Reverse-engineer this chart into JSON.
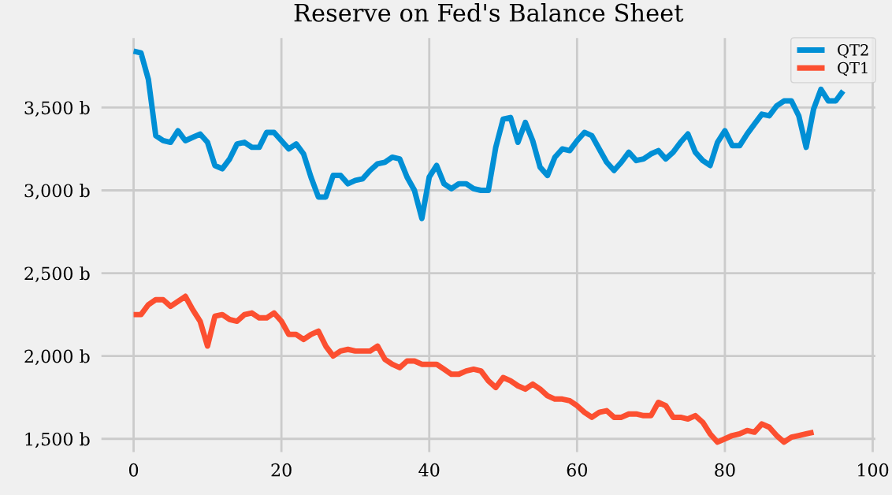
{
  "chart_data": {
    "type": "line",
    "title": "Reserve on Fed's Balance Sheet",
    "xlim": [
      -4.8,
      100.8
    ],
    "xticks": [
      0,
      20,
      40,
      60,
      80,
      100
    ],
    "ylim": [
      1400,
      3940
    ],
    "yticks": [
      {
        "value": 1500,
        "label": "1,500 b"
      },
      {
        "value": 2000,
        "label": "2,000 b"
      },
      {
        "value": 2500,
        "label": "2,500 b"
      },
      {
        "value": 3000,
        "label": "3,000 b"
      },
      {
        "value": 3500,
        "label": "3,500 b"
      }
    ],
    "grid": true,
    "legend": "top right",
    "marker": "none",
    "line_style": "solid",
    "series": [
      {
        "name": "QT2",
        "color": "#008fd5",
        "x": [
          0,
          1,
          2,
          3,
          4,
          5,
          6,
          7,
          8,
          9,
          10,
          11,
          12,
          13,
          14,
          15,
          16,
          17,
          18,
          19,
          20,
          21,
          22,
          23,
          24,
          25,
          26,
          27,
          28,
          29,
          30,
          31,
          32,
          33,
          34,
          35,
          36,
          37,
          38,
          39,
          40,
          41,
          42,
          43,
          44,
          45,
          46,
          47,
          48,
          49,
          50,
          51,
          52,
          53,
          54,
          55,
          56,
          57,
          58,
          59,
          60,
          61,
          62,
          63,
          64,
          65,
          66,
          67,
          68,
          69,
          70,
          71,
          72,
          73,
          74,
          75,
          76,
          77,
          78,
          79,
          80,
          81,
          82,
          83,
          84,
          85,
          86,
          87,
          88,
          89,
          90,
          91,
          92,
          93,
          94,
          95,
          96
        ],
        "values": [
          3840,
          3830,
          3670,
          3330,
          3300,
          3290,
          3360,
          3300,
          3320,
          3340,
          3290,
          3150,
          3130,
          3190,
          3280,
          3290,
          3260,
          3260,
          3350,
          3350,
          3300,
          3250,
          3280,
          3220,
          3080,
          2960,
          2960,
          3090,
          3090,
          3040,
          3060,
          3070,
          3120,
          3160,
          3170,
          3200,
          3190,
          3080,
          3000,
          2830,
          3080,
          3150,
          3040,
          3010,
          3040,
          3040,
          3010,
          3000,
          3000,
          3260,
          3430,
          3440,
          3290,
          3410,
          3300,
          3140,
          3090,
          3200,
          3250,
          3240,
          3300,
          3350,
          3330,
          3250,
          3170,
          3120,
          3170,
          3230,
          3180,
          3190,
          3220,
          3240,
          3190,
          3230,
          3290,
          3340,
          3230,
          3180,
          3150,
          3290,
          3360,
          3270,
          3270,
          3340,
          3400,
          3460,
          3450,
          3510,
          3540,
          3540,
          3450,
          3260,
          3490,
          3610,
          3540,
          3540,
          3600
        ]
      },
      {
        "name": "QT1",
        "color": "#fc4f30",
        "x": [
          0,
          1,
          2,
          3,
          4,
          5,
          6,
          7,
          8,
          9,
          10,
          11,
          12,
          13,
          14,
          15,
          16,
          17,
          18,
          19,
          20,
          21,
          22,
          23,
          24,
          25,
          26,
          27,
          28,
          29,
          30,
          31,
          32,
          33,
          34,
          35,
          36,
          37,
          38,
          39,
          40,
          41,
          42,
          43,
          44,
          45,
          46,
          47,
          48,
          49,
          50,
          51,
          52,
          53,
          54,
          55,
          56,
          57,
          58,
          59,
          60,
          61,
          62,
          63,
          64,
          65,
          66,
          67,
          68,
          69,
          70,
          71,
          72,
          73,
          74,
          75,
          76,
          77,
          78,
          79,
          80,
          81,
          82,
          83,
          84,
          85,
          86,
          87,
          88,
          89,
          90,
          91,
          92
        ],
        "values": [
          2250,
          2250,
          2310,
          2340,
          2340,
          2300,
          2330,
          2360,
          2280,
          2210,
          2060,
          2240,
          2250,
          2220,
          2210,
          2250,
          2260,
          2230,
          2230,
          2260,
          2210,
          2130,
          2130,
          2100,
          2130,
          2150,
          2060,
          2000,
          2030,
          2040,
          2030,
          2030,
          2030,
          2060,
          1980,
          1950,
          1930,
          1970,
          1970,
          1950,
          1950,
          1950,
          1920,
          1890,
          1890,
          1910,
          1920,
          1910,
          1850,
          1810,
          1870,
          1850,
          1820,
          1800,
          1830,
          1800,
          1760,
          1740,
          1740,
          1730,
          1700,
          1660,
          1630,
          1660,
          1670,
          1630,
          1630,
          1650,
          1650,
          1640,
          1640,
          1720,
          1700,
          1630,
          1630,
          1620,
          1640,
          1600,
          1530,
          1480,
          1500,
          1520,
          1530,
          1550,
          1540,
          1590,
          1570,
          1520,
          1480,
          1510,
          1520,
          1530,
          1540
        ]
      }
    ]
  }
}
